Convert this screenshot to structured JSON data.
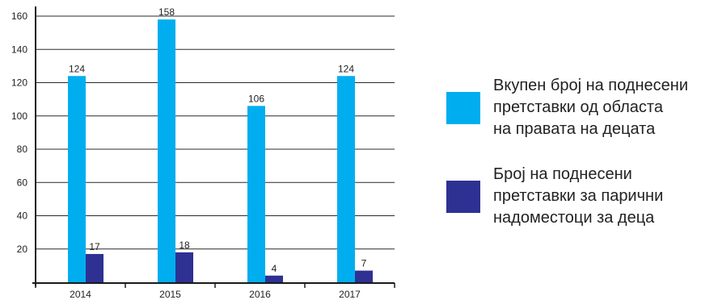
{
  "chart_data": {
    "type": "bar",
    "title": "",
    "xlabel": "",
    "ylabel": "",
    "categories": [
      "2014",
      "2015",
      "2016",
      "2017"
    ],
    "ylim": [
      0,
      160
    ],
    "yticks": [
      20,
      40,
      60,
      80,
      100,
      120,
      140,
      160
    ],
    "grid": true,
    "legend_position": "right",
    "series": [
      {
        "name": "Вкупен број на поднесени претставки од областа на правата на децата",
        "values": [
          124,
          158,
          106,
          124
        ],
        "color": "#00aeef"
      },
      {
        "name": "Број на поднесени претставки за парични надоместоци за деца",
        "values": [
          17,
          18,
          4,
          7
        ],
        "color": "#2e3192"
      }
    ]
  },
  "legend": {
    "items": [
      {
        "text": "Вкупен број на поднесени\nпретставки од областа\nна правата на децата",
        "color": "#00aeef"
      },
      {
        "text": "Број на поднесени\nпретставки за парични\nнадоместоци за деца",
        "color": "#2e3192"
      }
    ]
  }
}
